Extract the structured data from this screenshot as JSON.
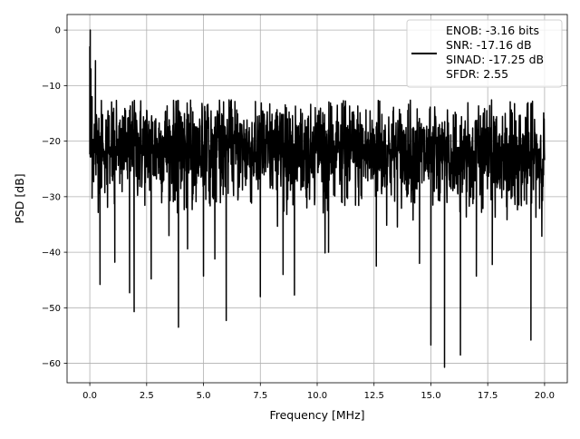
{
  "chart_data": {
    "type": "line",
    "title": "",
    "xlabel": "Frequency [MHz]",
    "ylabel": "PSD [dB]",
    "xlim": [
      -1.0,
      21.0
    ],
    "ylim": [
      -63.5,
      2.8
    ],
    "grid": true,
    "x_ticks": [
      "0.0",
      "2.5",
      "5.0",
      "7.5",
      "10.0",
      "12.5",
      "15.0",
      "17.5",
      "20.0"
    ],
    "x_tick_values": [
      0,
      2.5,
      5,
      7.5,
      10,
      12.5,
      15,
      17.5,
      20
    ],
    "y_ticks": [
      "0",
      "−10",
      "−20",
      "−30",
      "−40",
      "−50",
      "−60"
    ],
    "y_tick_values": [
      0,
      -10,
      -20,
      -30,
      -40,
      -50,
      -60
    ],
    "legend": {
      "placement": "top-right",
      "entries": [
        "ENOB: -3.16 bits",
        "SNR: -17.16 dB",
        "SINAD: -17.25 dB",
        "SFDR: 2.55"
      ]
    },
    "series": [
      {
        "name": "PSD",
        "color": "#000000",
        "x_range": [
          0,
          20
        ],
        "noise_floor": {
          "points": 2000,
          "mean_start": -21,
          "mean_end": -23,
          "std": 4.5,
          "seed": 12345
        },
        "notable_points": [
          [
            0.0,
            -3.0
          ],
          [
            0.02,
            0.0
          ],
          [
            0.05,
            -7.0
          ],
          [
            0.1,
            -12.0
          ],
          [
            0.25,
            -5.5
          ],
          [
            0.45,
            -45.8
          ],
          [
            1.1,
            -41.8
          ],
          [
            1.75,
            -47.3
          ],
          [
            1.95,
            -50.7
          ],
          [
            2.7,
            -44.8
          ],
          [
            3.9,
            -53.5
          ],
          [
            4.3,
            -39.4
          ],
          [
            5.0,
            -44.3
          ],
          [
            5.5,
            -41.2
          ],
          [
            6.0,
            -52.3
          ],
          [
            7.5,
            -48.0
          ],
          [
            8.5,
            -44.0
          ],
          [
            9.0,
            -47.7
          ],
          [
            10.5,
            -40.0
          ],
          [
            12.6,
            -42.5
          ],
          [
            12.75,
            -12.8
          ],
          [
            14.5,
            -42.0
          ],
          [
            15.0,
            -56.7
          ],
          [
            15.6,
            -60.7
          ],
          [
            16.3,
            -58.5
          ],
          [
            17.0,
            -44.3
          ],
          [
            17.7,
            -42.2
          ],
          [
            19.4,
            -55.8
          ]
        ]
      }
    ]
  }
}
